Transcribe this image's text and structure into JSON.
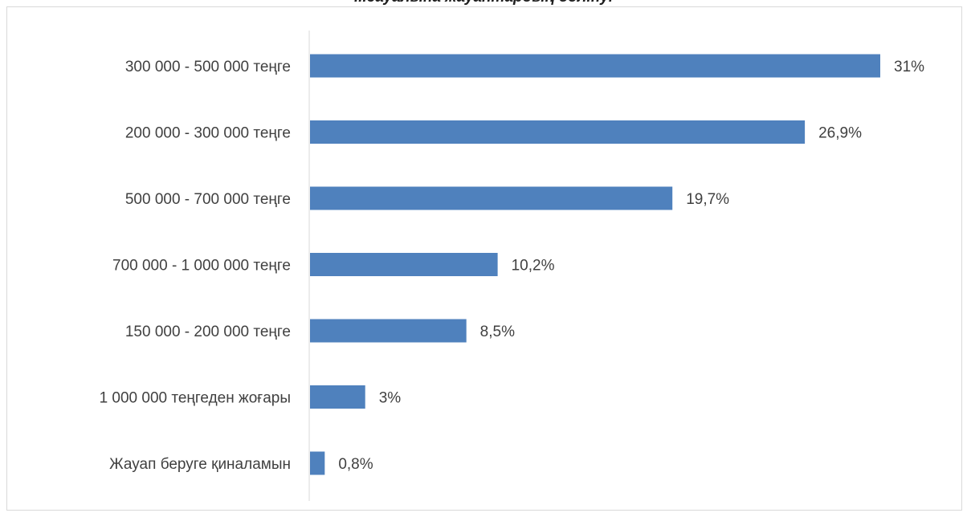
{
  "chart_data": {
    "type": "bar",
    "orientation": "horizontal",
    "title": "...сауалына жауаптардың бөлінуі",
    "xlabel": "",
    "ylabel": "",
    "categories": [
      "300 000 - 500 000 теңге",
      "200 000 - 300 000 теңге",
      "500 000 - 700 000 теңге",
      "700 000 - 1 000 000 теңге",
      "150 000 - 200 000 теңге",
      "1 000 000 теңгеден жоғары",
      "Жауап беруге қиналамын"
    ],
    "values": [
      31,
      26.9,
      19.7,
      10.2,
      8.5,
      3,
      0.8
    ],
    "data_labels": [
      "31%",
      "26,9%",
      "19,7%",
      "10,2%",
      "8,5%",
      "3%",
      "0,8%"
    ],
    "xlim": [
      0,
      31
    ],
    "grid": false,
    "legend": "none",
    "bar_color": "#4f81bd",
    "axis_color": "#d9d9d9"
  }
}
